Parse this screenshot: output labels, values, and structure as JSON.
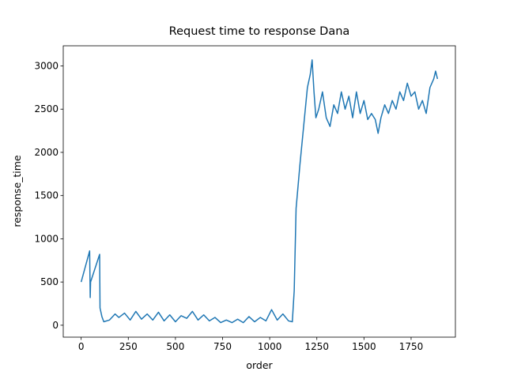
{
  "chart_data": {
    "type": "line",
    "title": "Request time to response Dana",
    "xlabel": "order",
    "ylabel": "response_time",
    "x": [
      0,
      45,
      48,
      50,
      98,
      100,
      110,
      120,
      150,
      180,
      200,
      230,
      260,
      290,
      320,
      350,
      380,
      410,
      440,
      470,
      500,
      530,
      560,
      590,
      620,
      650,
      680,
      710,
      740,
      770,
      800,
      830,
      860,
      890,
      920,
      950,
      980,
      1010,
      1040,
      1070,
      1100,
      1120,
      1130,
      1140,
      1160,
      1180,
      1200,
      1215,
      1225,
      1235,
      1245,
      1260,
      1280,
      1300,
      1320,
      1340,
      1360,
      1380,
      1400,
      1420,
      1440,
      1460,
      1480,
      1500,
      1520,
      1540,
      1560,
      1575,
      1590,
      1610,
      1630,
      1650,
      1670,
      1690,
      1710,
      1730,
      1750,
      1770,
      1790,
      1810,
      1830,
      1850,
      1870,
      1880,
      1890
    ],
    "series": [
      {
        "name": "response_time",
        "color": "#1f77b4",
        "values": [
          500,
          860,
          320,
          500,
          820,
          200,
          100,
          40,
          60,
          130,
          90,
          140,
          60,
          160,
          70,
          130,
          60,
          150,
          50,
          120,
          40,
          110,
          80,
          160,
          60,
          120,
          50,
          90,
          30,
          60,
          30,
          70,
          30,
          100,
          40,
          90,
          50,
          180,
          60,
          130,
          50,
          40,
          400,
          1350,
          1850,
          2300,
          2750,
          2900,
          3070,
          2700,
          2400,
          2500,
          2700,
          2400,
          2300,
          2550,
          2450,
          2700,
          2500,
          2650,
          2400,
          2700,
          2450,
          2600,
          2380,
          2450,
          2380,
          2220,
          2400,
          2550,
          2450,
          2600,
          2500,
          2700,
          2600,
          2800,
          2650,
          2700,
          2500,
          2600,
          2450,
          2750,
          2850,
          2940,
          2850
        ]
      }
    ],
    "xlim": [
      -95,
      1985
    ],
    "ylim": [
      -138,
      3233
    ],
    "xticks": [
      0,
      250,
      500,
      750,
      1000,
      1250,
      1500,
      1750
    ],
    "yticks": [
      0,
      500,
      1000,
      1500,
      2000,
      2500,
      3000
    ]
  }
}
